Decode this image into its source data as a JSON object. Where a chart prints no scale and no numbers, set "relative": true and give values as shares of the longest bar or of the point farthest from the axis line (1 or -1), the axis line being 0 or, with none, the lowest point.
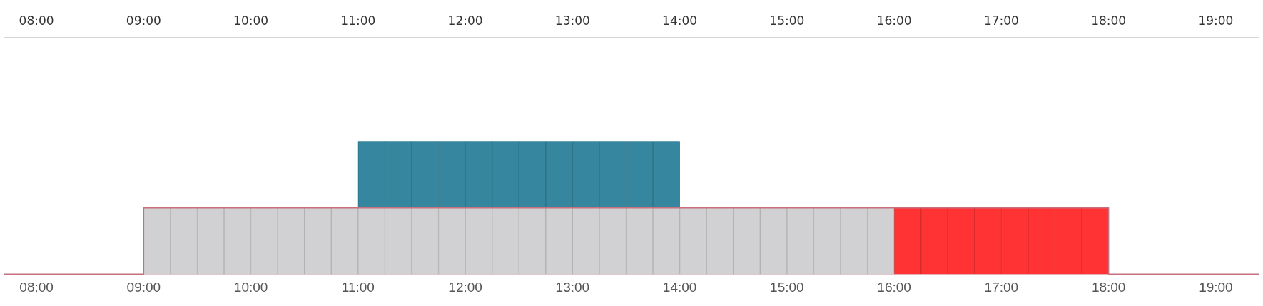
{
  "chart_data": {
    "type": "bar",
    "stacked": true,
    "relative": true,
    "grid": false,
    "legend": false,
    "x": [
      9.125,
      9.375,
      9.625,
      9.875,
      10.125,
      10.375,
      10.625,
      10.875,
      11.125,
      11.375,
      11.625,
      11.875,
      12.125,
      12.375,
      12.625,
      12.875,
      13.125,
      13.375,
      13.625,
      13.875,
      14.125,
      14.375,
      14.625,
      14.875,
      15.125,
      15.375,
      15.625,
      15.875,
      16.125,
      16.375,
      16.625,
      16.875,
      17.125,
      17.375,
      17.625,
      17.875
    ],
    "xlim": [
      7.7,
      19.4
    ],
    "xticks": [
      {
        "value": 8,
        "label": "08:00"
      },
      {
        "value": 9,
        "label": "09:00"
      },
      {
        "value": 10,
        "label": "10:00"
      },
      {
        "value": 11,
        "label": "11:00"
      },
      {
        "value": 12,
        "label": "12:00"
      },
      {
        "value": 13,
        "label": "13:00"
      },
      {
        "value": 14,
        "label": "14:00"
      },
      {
        "value": 15,
        "label": "15:00"
      },
      {
        "value": 16,
        "label": "16:00"
      },
      {
        "value": 17,
        "label": "17:00"
      },
      {
        "value": 18,
        "label": "18:00"
      },
      {
        "value": 19,
        "label": "19:00"
      }
    ],
    "x2lim": [
      7.7,
      19.4
    ],
    "x2ticks": [
      {
        "value": 8,
        "label": "08:00"
      },
      {
        "value": 9,
        "label": "09:00"
      },
      {
        "value": 10,
        "label": "10:00"
      },
      {
        "value": 11,
        "label": "11:00"
      },
      {
        "value": 12,
        "label": "12:00"
      },
      {
        "value": 13,
        "label": "13:00"
      },
      {
        "value": 14,
        "label": "14:00"
      },
      {
        "value": 15,
        "label": "15:00"
      },
      {
        "value": 16,
        "label": "16:00"
      },
      {
        "value": 17,
        "label": "17:00"
      },
      {
        "value": 18,
        "label": "18:00"
      },
      {
        "value": 19,
        "label": "19:00"
      }
    ],
    "series": [
      {
        "color": "#d1d1d3",
        "values": [
          0.5,
          0.5,
          0.5,
          0.5,
          0.5,
          0.5,
          0.5,
          0.5,
          0.5,
          0.5,
          0.5,
          0.5,
          0.5,
          0.5,
          0.5,
          0.5,
          0.5,
          0.5,
          0.5,
          0.5,
          0.5,
          0.5,
          0.5,
          0.5,
          0.5,
          0.5,
          0.5,
          0.5,
          null,
          null,
          null,
          null,
          null,
          null,
          null,
          null
        ]
      },
      {
        "color": "#35869e",
        "values": [
          null,
          null,
          null,
          null,
          null,
          null,
          null,
          null,
          0.5,
          0.5,
          0.5,
          0.5,
          0.5,
          0.5,
          0.5,
          0.5,
          0.5,
          0.5,
          0.5,
          0.5,
          null,
          null,
          null,
          null,
          null,
          null,
          null,
          null,
          null,
          null,
          null,
          null,
          null,
          null,
          null,
          null
        ]
      },
      {
        "color": "#ff3333",
        "values": [
          null,
          null,
          null,
          null,
          null,
          null,
          null,
          null,
          null,
          null,
          null,
          null,
          null,
          null,
          null,
          null,
          null,
          null,
          null,
          null,
          null,
          null,
          null,
          null,
          null,
          null,
          null,
          null,
          0.5,
          0.5,
          0.5,
          0.5,
          0.5,
          0.5,
          0.5,
          0.5
        ]
      },
      {
        "type": "step",
        "color": "#c8707e",
        "x": [
          7.7,
          9,
          18,
          19.4
        ],
        "values": [
          0,
          0.5,
          0,
          0
        ]
      }
    ]
  }
}
